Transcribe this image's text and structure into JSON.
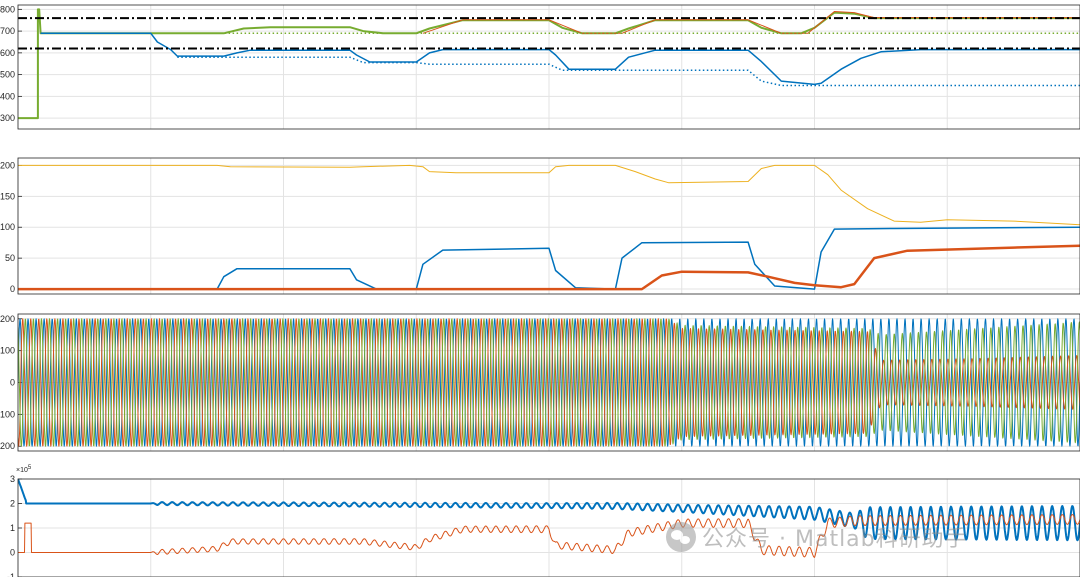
{
  "watermark": {
    "text": "公众号 · Matlab科研助手",
    "icon": "wechat-logo-icon"
  },
  "chart_data": [
    {
      "type": "line",
      "title": "",
      "xlabel": "",
      "ylabel": "",
      "xlim": [
        0,
        8
      ],
      "ylim": [
        250,
        820
      ],
      "yticks": [
        300,
        400,
        500,
        600,
        700,
        800
      ],
      "grid": true,
      "series": [
        {
          "color": "#77AC30",
          "style": "solid",
          "width": 2,
          "points": [
            [
              0,
              300
            ],
            [
              0.15,
              300
            ],
            [
              0.15,
              800
            ],
            [
              0.16,
              800
            ],
            [
              0.17,
              690
            ],
            [
              1.55,
              690
            ],
            [
              1.7,
              712
            ],
            [
              1.9,
              718
            ],
            [
              2.5,
              718
            ],
            [
              2.6,
              700
            ],
            [
              2.75,
              690
            ],
            [
              3.0,
              690
            ],
            [
              3.1,
              712
            ],
            [
              3.35,
              750
            ],
            [
              4.0,
              750
            ],
            [
              4.1,
              715
            ],
            [
              4.25,
              690
            ],
            [
              4.5,
              690
            ],
            [
              4.6,
              712
            ],
            [
              4.8,
              750
            ],
            [
              5.5,
              750
            ],
            [
              5.6,
              715
            ],
            [
              5.75,
              690
            ],
            [
              5.9,
              690
            ],
            [
              6.0,
              715
            ],
            [
              6.15,
              785
            ],
            [
              6.3,
              780
            ],
            [
              6.45,
              760
            ],
            [
              8,
              760
            ]
          ]
        },
        {
          "color": "#D95319",
          "style": "solid",
          "width": 1,
          "points": [
            [
              3.05,
              690
            ],
            [
              3.35,
              752
            ],
            [
              4.0,
              752
            ],
            [
              4.25,
              690
            ],
            [
              4.55,
              690
            ],
            [
              4.8,
              752
            ],
            [
              5.5,
              752
            ],
            [
              5.75,
              690
            ],
            [
              5.95,
              690
            ],
            [
              6.15,
              790
            ],
            [
              6.3,
              785
            ],
            [
              6.45,
              762
            ],
            [
              8,
              762
            ]
          ]
        },
        {
          "color": "#77AC30",
          "style": "dotted",
          "width": 1.5,
          "points": [
            [
              0.17,
              690
            ],
            [
              8,
              690
            ]
          ]
        },
        {
          "color": "#0072BD",
          "style": "solid",
          "width": 1.5,
          "points": [
            [
              0.17,
              690
            ],
            [
              1.0,
              690
            ],
            [
              1.05,
              650
            ],
            [
              1.15,
              615
            ],
            [
              1.2,
              585
            ],
            [
              1.55,
              585
            ],
            [
              1.65,
              600
            ],
            [
              1.75,
              612
            ],
            [
              2.5,
              612
            ],
            [
              2.55,
              590
            ],
            [
              2.65,
              558
            ],
            [
              3.0,
              558
            ],
            [
              3.1,
              600
            ],
            [
              3.2,
              615
            ],
            [
              4.0,
              615
            ],
            [
              4.05,
              590
            ],
            [
              4.15,
              525
            ],
            [
              4.5,
              525
            ],
            [
              4.6,
              580
            ],
            [
              4.8,
              612
            ],
            [
              5.5,
              612
            ],
            [
              5.6,
              560
            ],
            [
              5.75,
              470
            ],
            [
              6.0,
              455
            ],
            [
              6.05,
              460
            ],
            [
              6.2,
              525
            ],
            [
              6.35,
              575
            ],
            [
              6.5,
              605
            ],
            [
              6.8,
              615
            ],
            [
              8,
              615
            ]
          ]
        },
        {
          "color": "#0072BD",
          "style": "dotted",
          "width": 1.5,
          "points": [
            [
              1.2,
              580
            ],
            [
              2.5,
              580
            ],
            [
              2.6,
              555
            ],
            [
              3.0,
              555
            ],
            [
              3.1,
              548
            ],
            [
              4.0,
              548
            ],
            [
              4.1,
              520
            ],
            [
              5.5,
              520
            ],
            [
              5.6,
              470
            ],
            [
              5.75,
              450
            ],
            [
              8,
              450
            ]
          ]
        },
        {
          "color": "#000000",
          "style": "dashdot",
          "width": 2,
          "points": [
            [
              0,
              760
            ],
            [
              8,
              760
            ]
          ]
        },
        {
          "color": "#000000",
          "style": "dashdot",
          "width": 2,
          "points": [
            [
              0,
              620
            ],
            [
              8,
              620
            ]
          ]
        }
      ]
    },
    {
      "type": "line",
      "title": "",
      "xlabel": "",
      "ylabel": "",
      "xlim": [
        0,
        8
      ],
      "ylim": [
        -8,
        212
      ],
      "yticks": [
        0,
        50,
        100,
        150,
        200
      ],
      "grid": true,
      "series": [
        {
          "color": "#EDB120",
          "style": "solid",
          "width": 1,
          "points": [
            [
              0,
              200
            ],
            [
              1.5,
              200
            ],
            [
              1.6,
              198
            ],
            [
              2.5,
              197
            ],
            [
              2.6,
              198
            ],
            [
              2.95,
              200
            ],
            [
              3.05,
              198
            ],
            [
              3.1,
              190
            ],
            [
              3.3,
              188
            ],
            [
              4.0,
              188
            ],
            [
              4.05,
              198
            ],
            [
              4.15,
              200
            ],
            [
              4.5,
              200
            ],
            [
              4.65,
              190
            ],
            [
              4.8,
              178
            ],
            [
              4.9,
              172
            ],
            [
              5.5,
              174
            ],
            [
              5.6,
              195
            ],
            [
              5.7,
              200
            ],
            [
              6.0,
              200
            ],
            [
              6.1,
              185
            ],
            [
              6.2,
              160
            ],
            [
              6.4,
              130
            ],
            [
              6.6,
              110
            ],
            [
              6.8,
              108
            ],
            [
              7.0,
              112
            ],
            [
              7.5,
              110
            ],
            [
              8,
              104
            ]
          ]
        },
        {
          "color": "#0072BD",
          "style": "solid",
          "width": 1.5,
          "points": [
            [
              0,
              0
            ],
            [
              1.5,
              0
            ],
            [
              1.55,
              20
            ],
            [
              1.65,
              33
            ],
            [
              2.5,
              33
            ],
            [
              2.55,
              15
            ],
            [
              2.7,
              0
            ],
            [
              3.0,
              0
            ],
            [
              3.05,
              40
            ],
            [
              3.2,
              63
            ],
            [
              4.0,
              66
            ],
            [
              4.05,
              30
            ],
            [
              4.2,
              2
            ],
            [
              4.5,
              0
            ],
            [
              4.55,
              50
            ],
            [
              4.7,
              75
            ],
            [
              5.5,
              76
            ],
            [
              5.55,
              40
            ],
            [
              5.7,
              5
            ],
            [
              6.0,
              0
            ],
            [
              6.05,
              60
            ],
            [
              6.15,
              97
            ],
            [
              6.6,
              98
            ],
            [
              8,
              100
            ]
          ]
        },
        {
          "color": "#D95319",
          "style": "solid",
          "width": 2.5,
          "points": [
            [
              0,
              0
            ],
            [
              4.7,
              0
            ],
            [
              4.85,
              22
            ],
            [
              5.0,
              28
            ],
            [
              5.5,
              27
            ],
            [
              5.65,
              20
            ],
            [
              5.85,
              10
            ],
            [
              6.0,
              6
            ],
            [
              6.2,
              3
            ],
            [
              6.3,
              8
            ],
            [
              6.45,
              50
            ],
            [
              6.7,
              62
            ],
            [
              7.5,
              67
            ],
            [
              8,
              70
            ]
          ]
        }
      ]
    },
    {
      "type": "line",
      "title": "",
      "xlabel": "",
      "ylabel": "",
      "xlim": [
        0,
        8
      ],
      "ylim": [
        -215,
        215
      ],
      "yticks": [
        -200,
        -100,
        0,
        100,
        200
      ],
      "grid": true,
      "series": [
        {
          "name": "",
          "color": "#0072BD",
          "width": 1,
          "amplitude": [
            [
              0,
              200
            ],
            [
              8,
              200
            ]
          ],
          "phase_deg": 0
        },
        {
          "name": "",
          "color": "#D95319",
          "width": 1,
          "amplitude": [
            [
              0,
              200
            ],
            [
              4.9,
              200
            ],
            [
              5.0,
              170
            ],
            [
              6.4,
              160
            ],
            [
              6.5,
              70
            ],
            [
              7.2,
              75
            ],
            [
              8,
              85
            ]
          ],
          "phase_deg": -120
        },
        {
          "name": "",
          "color": "#77AC30",
          "width": 1,
          "amplitude": [
            [
              0,
              200
            ],
            [
              4.9,
              200
            ],
            [
              5.0,
              180
            ],
            [
              6.4,
              170
            ],
            [
              6.5,
              150
            ],
            [
              8,
              190
            ]
          ],
          "phase_deg": 120
        }
      ],
      "cycles": 132
    },
    {
      "type": "line",
      "title": "",
      "xlabel": "",
      "ylabel": "",
      "xlim": [
        0,
        8
      ],
      "ylim": [
        -1,
        3
      ],
      "yticks": [
        -1,
        0,
        1,
        2,
        3
      ],
      "exponent": "× 10^5",
      "exp_base": "×10",
      "exp_power": "5",
      "grid": true,
      "series": [
        {
          "color": "#0072BD",
          "width": 2,
          "base": [
            [
              0,
              2.0
            ],
            [
              1.0,
              2.0
            ],
            [
              4.5,
              1.9
            ],
            [
              6.0,
              1.6
            ],
            [
              6.4,
              1.2
            ],
            [
              8,
              1.2
            ]
          ],
          "ripple": [
            [
              0,
              0
            ],
            [
              1.0,
              0
            ],
            [
              1.05,
              0.06
            ],
            [
              4.0,
              0.1
            ],
            [
              5.0,
              0.15
            ],
            [
              6.3,
              0.3
            ],
            [
              6.4,
              0.65
            ],
            [
              8,
              0.7
            ]
          ]
        },
        {
          "color": "#D95319",
          "width": 1,
          "base": [
            [
              0,
              0
            ],
            [
              1.0,
              0
            ],
            [
              1.5,
              0.15
            ],
            [
              1.6,
              0.45
            ],
            [
              2.6,
              0.45
            ],
            [
              3.0,
              0.2
            ],
            [
              3.1,
              0.55
            ],
            [
              3.35,
              0.95
            ],
            [
              4.0,
              0.95
            ],
            [
              4.05,
              0.3
            ],
            [
              4.5,
              0.1
            ],
            [
              4.6,
              0.8
            ],
            [
              5.0,
              1.2
            ],
            [
              5.5,
              1.2
            ],
            [
              5.6,
              0.1
            ],
            [
              6.0,
              0
            ],
            [
              6.1,
              1.2
            ],
            [
              6.3,
              1.3
            ],
            [
              8,
              1.35
            ]
          ],
          "ripple": [
            [
              0,
              0
            ],
            [
              1.0,
              0
            ],
            [
              1.05,
              0.1
            ],
            [
              3.0,
              0.12
            ],
            [
              4.5,
              0.15
            ],
            [
              6.0,
              0.2
            ],
            [
              8,
              0.2
            ]
          ]
        }
      ]
    }
  ]
}
